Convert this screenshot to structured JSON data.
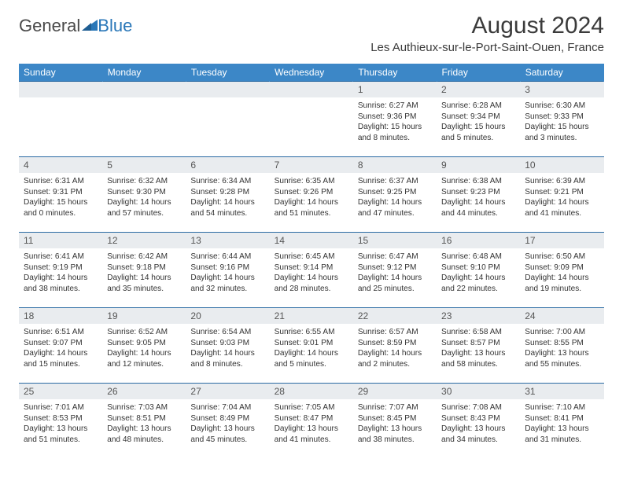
{
  "logo": {
    "general": "General",
    "blue": "Blue"
  },
  "title": "August 2024",
  "location": "Les Authieux-sur-le-Port-Saint-Ouen, France",
  "colors": {
    "header_bg": "#3c87c7",
    "daynum_bg": "#e9ecef",
    "row_border": "#2a6aa3",
    "text": "#333333"
  },
  "weekdays": [
    "Sunday",
    "Monday",
    "Tuesday",
    "Wednesday",
    "Thursday",
    "Friday",
    "Saturday"
  ],
  "weeks": [
    [
      null,
      null,
      null,
      null,
      {
        "n": "1",
        "sr": "6:27 AM",
        "ss": "9:36 PM",
        "dl": "15 hours and 8 minutes."
      },
      {
        "n": "2",
        "sr": "6:28 AM",
        "ss": "9:34 PM",
        "dl": "15 hours and 5 minutes."
      },
      {
        "n": "3",
        "sr": "6:30 AM",
        "ss": "9:33 PM",
        "dl": "15 hours and 3 minutes."
      }
    ],
    [
      {
        "n": "4",
        "sr": "6:31 AM",
        "ss": "9:31 PM",
        "dl": "15 hours and 0 minutes."
      },
      {
        "n": "5",
        "sr": "6:32 AM",
        "ss": "9:30 PM",
        "dl": "14 hours and 57 minutes."
      },
      {
        "n": "6",
        "sr": "6:34 AM",
        "ss": "9:28 PM",
        "dl": "14 hours and 54 minutes."
      },
      {
        "n": "7",
        "sr": "6:35 AM",
        "ss": "9:26 PM",
        "dl": "14 hours and 51 minutes."
      },
      {
        "n": "8",
        "sr": "6:37 AM",
        "ss": "9:25 PM",
        "dl": "14 hours and 47 minutes."
      },
      {
        "n": "9",
        "sr": "6:38 AM",
        "ss": "9:23 PM",
        "dl": "14 hours and 44 minutes."
      },
      {
        "n": "10",
        "sr": "6:39 AM",
        "ss": "9:21 PM",
        "dl": "14 hours and 41 minutes."
      }
    ],
    [
      {
        "n": "11",
        "sr": "6:41 AM",
        "ss": "9:19 PM",
        "dl": "14 hours and 38 minutes."
      },
      {
        "n": "12",
        "sr": "6:42 AM",
        "ss": "9:18 PM",
        "dl": "14 hours and 35 minutes."
      },
      {
        "n": "13",
        "sr": "6:44 AM",
        "ss": "9:16 PM",
        "dl": "14 hours and 32 minutes."
      },
      {
        "n": "14",
        "sr": "6:45 AM",
        "ss": "9:14 PM",
        "dl": "14 hours and 28 minutes."
      },
      {
        "n": "15",
        "sr": "6:47 AM",
        "ss": "9:12 PM",
        "dl": "14 hours and 25 minutes."
      },
      {
        "n": "16",
        "sr": "6:48 AM",
        "ss": "9:10 PM",
        "dl": "14 hours and 22 minutes."
      },
      {
        "n": "17",
        "sr": "6:50 AM",
        "ss": "9:09 PM",
        "dl": "14 hours and 19 minutes."
      }
    ],
    [
      {
        "n": "18",
        "sr": "6:51 AM",
        "ss": "9:07 PM",
        "dl": "14 hours and 15 minutes."
      },
      {
        "n": "19",
        "sr": "6:52 AM",
        "ss": "9:05 PM",
        "dl": "14 hours and 12 minutes."
      },
      {
        "n": "20",
        "sr": "6:54 AM",
        "ss": "9:03 PM",
        "dl": "14 hours and 8 minutes."
      },
      {
        "n": "21",
        "sr": "6:55 AM",
        "ss": "9:01 PM",
        "dl": "14 hours and 5 minutes."
      },
      {
        "n": "22",
        "sr": "6:57 AM",
        "ss": "8:59 PM",
        "dl": "14 hours and 2 minutes."
      },
      {
        "n": "23",
        "sr": "6:58 AM",
        "ss": "8:57 PM",
        "dl": "13 hours and 58 minutes."
      },
      {
        "n": "24",
        "sr": "7:00 AM",
        "ss": "8:55 PM",
        "dl": "13 hours and 55 minutes."
      }
    ],
    [
      {
        "n": "25",
        "sr": "7:01 AM",
        "ss": "8:53 PM",
        "dl": "13 hours and 51 minutes."
      },
      {
        "n": "26",
        "sr": "7:03 AM",
        "ss": "8:51 PM",
        "dl": "13 hours and 48 minutes."
      },
      {
        "n": "27",
        "sr": "7:04 AM",
        "ss": "8:49 PM",
        "dl": "13 hours and 45 minutes."
      },
      {
        "n": "28",
        "sr": "7:05 AM",
        "ss": "8:47 PM",
        "dl": "13 hours and 41 minutes."
      },
      {
        "n": "29",
        "sr": "7:07 AM",
        "ss": "8:45 PM",
        "dl": "13 hours and 38 minutes."
      },
      {
        "n": "30",
        "sr": "7:08 AM",
        "ss": "8:43 PM",
        "dl": "13 hours and 34 minutes."
      },
      {
        "n": "31",
        "sr": "7:10 AM",
        "ss": "8:41 PM",
        "dl": "13 hours and 31 minutes."
      }
    ]
  ],
  "labels": {
    "sunrise": "Sunrise:",
    "sunset": "Sunset:",
    "daylight": "Daylight:"
  }
}
